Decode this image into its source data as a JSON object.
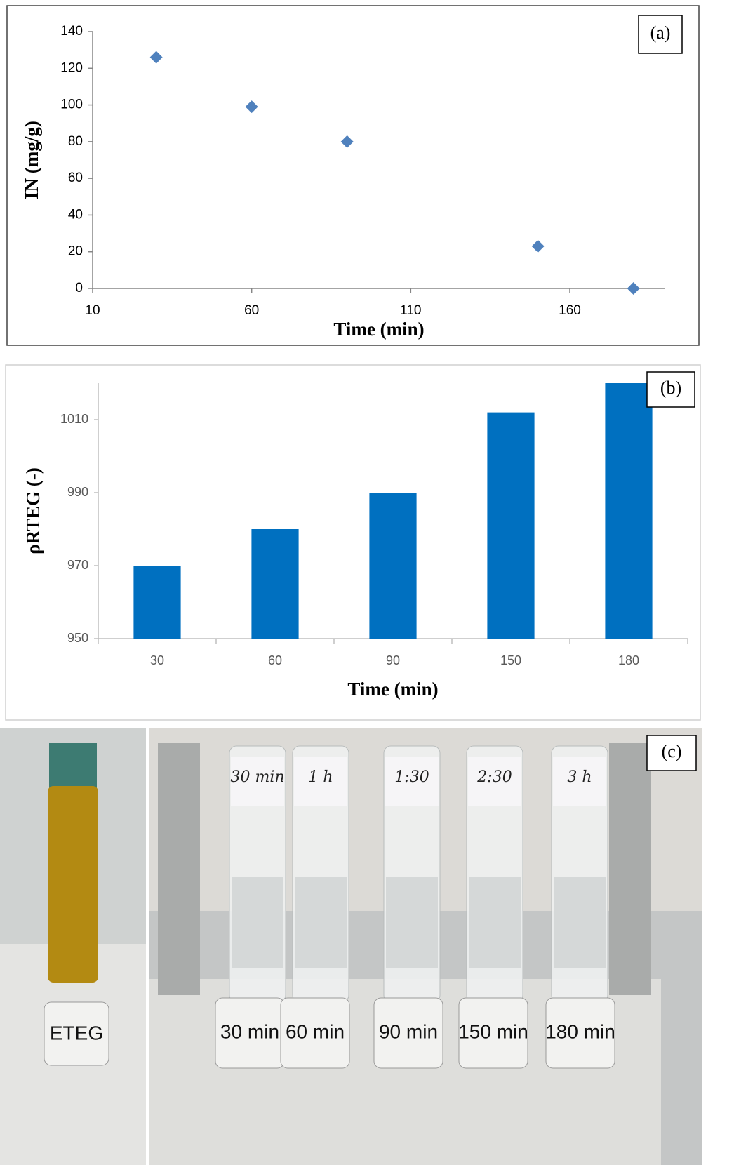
{
  "chart_data": [
    {
      "type": "scatter",
      "panel_label": "(a)",
      "x_label": "Time (min)",
      "y_label": "IN (mg/g)",
      "x": [
        30,
        60,
        90,
        150,
        180
      ],
      "values": [
        126,
        99,
        80,
        23,
        0
      ],
      "color": "#4f81bd",
      "xlim": [
        10,
        190
      ],
      "xticks": [
        10,
        60,
        110,
        160
      ],
      "ylim": [
        0,
        140
      ],
      "yticks": [
        0,
        20,
        40,
        60,
        80,
        100,
        120,
        140
      ]
    },
    {
      "type": "bar",
      "panel_label": "(b)",
      "x_label": "Time (min)",
      "y_label": "ρRTEG (-)",
      "categories": [
        "30",
        "60",
        "90",
        "150",
        "180"
      ],
      "values": [
        970,
        980,
        990,
        1012,
        1020
      ],
      "color": "#0070c0",
      "ylim": [
        950,
        1020
      ],
      "yticks": [
        950,
        970,
        990,
        1010
      ]
    }
  ],
  "photo": {
    "panel_label": "(c)",
    "reference_label": "ETEG",
    "tube_labels": [
      "30 min",
      "60 min",
      "90 min",
      "150 min",
      "180 min"
    ],
    "handwritten": [
      "30 min",
      "1 h",
      "1:30",
      "2:30",
      "3 h"
    ]
  }
}
